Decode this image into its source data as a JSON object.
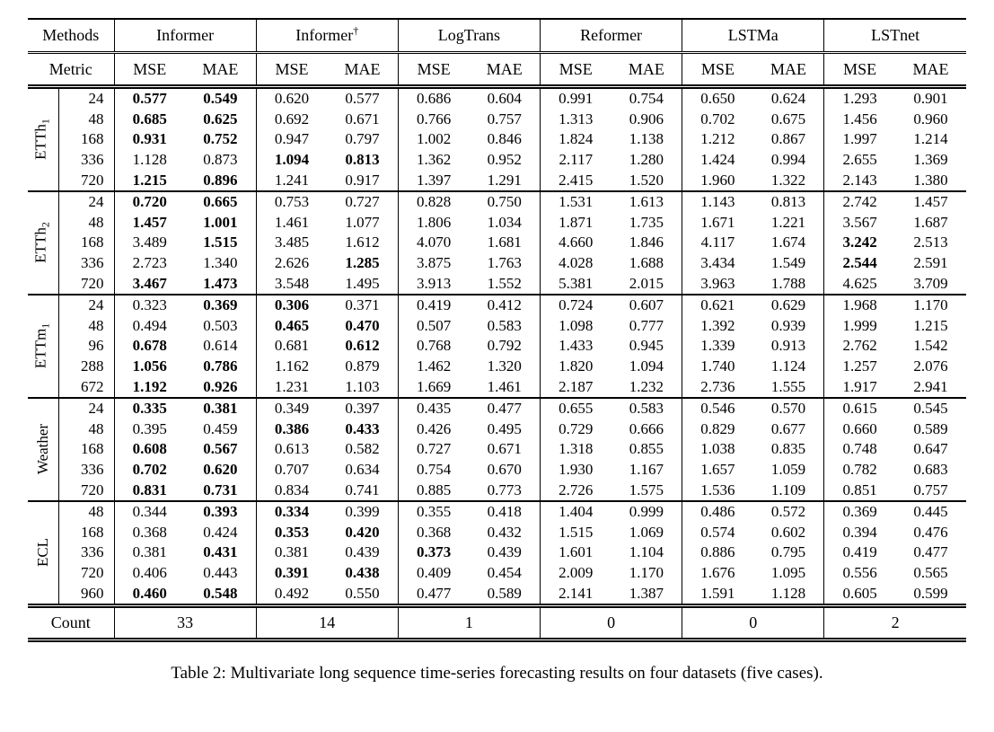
{
  "header": {
    "methods_label": "Methods",
    "metric_label": "Metric",
    "mse": "MSE",
    "mae": "MAE",
    "methods": [
      {
        "name": "Informer",
        "sup": ""
      },
      {
        "name": "Informer",
        "sup": "†"
      },
      {
        "name": "LogTrans",
        "sup": ""
      },
      {
        "name": "Reformer",
        "sup": ""
      },
      {
        "name": "LSTMa",
        "sup": ""
      },
      {
        "name": "LSTnet",
        "sup": ""
      }
    ]
  },
  "groups": [
    {
      "dataset": "ETTh",
      "sub": "1",
      "rows": [
        {
          "len": "24",
          "values": [
            "0.577",
            "0.549",
            "0.620",
            "0.577",
            "0.686",
            "0.604",
            "0.991",
            "0.754",
            "0.650",
            "0.624",
            "1.293",
            "0.901"
          ],
          "bold": [
            1,
            1,
            0,
            0,
            0,
            0,
            0,
            0,
            0,
            0,
            0,
            0
          ]
        },
        {
          "len": "48",
          "values": [
            "0.685",
            "0.625",
            "0.692",
            "0.671",
            "0.766",
            "0.757",
            "1.313",
            "0.906",
            "0.702",
            "0.675",
            "1.456",
            "0.960"
          ],
          "bold": [
            1,
            1,
            0,
            0,
            0,
            0,
            0,
            0,
            0,
            0,
            0,
            0
          ]
        },
        {
          "len": "168",
          "values": [
            "0.931",
            "0.752",
            "0.947",
            "0.797",
            "1.002",
            "0.846",
            "1.824",
            "1.138",
            "1.212",
            "0.867",
            "1.997",
            "1.214"
          ],
          "bold": [
            1,
            1,
            0,
            0,
            0,
            0,
            0,
            0,
            0,
            0,
            0,
            0
          ]
        },
        {
          "len": "336",
          "values": [
            "1.128",
            "0.873",
            "1.094",
            "0.813",
            "1.362",
            "0.952",
            "2.117",
            "1.280",
            "1.424",
            "0.994",
            "2.655",
            "1.369"
          ],
          "bold": [
            0,
            0,
            1,
            1,
            0,
            0,
            0,
            0,
            0,
            0,
            0,
            0
          ]
        },
        {
          "len": "720",
          "values": [
            "1.215",
            "0.896",
            "1.241",
            "0.917",
            "1.397",
            "1.291",
            "2.415",
            "1.520",
            "1.960",
            "1.322",
            "2.143",
            "1.380"
          ],
          "bold": [
            1,
            1,
            0,
            0,
            0,
            0,
            0,
            0,
            0,
            0,
            0,
            0
          ]
        }
      ]
    },
    {
      "dataset": "ETTh",
      "sub": "2",
      "rows": [
        {
          "len": "24",
          "values": [
            "0.720",
            "0.665",
            "0.753",
            "0.727",
            "0.828",
            "0.750",
            "1.531",
            "1.613",
            "1.143",
            "0.813",
            "2.742",
            "1.457"
          ],
          "bold": [
            1,
            1,
            0,
            0,
            0,
            0,
            0,
            0,
            0,
            0,
            0,
            0
          ]
        },
        {
          "len": "48",
          "values": [
            "1.457",
            "1.001",
            "1.461",
            "1.077",
            "1.806",
            "1.034",
            "1.871",
            "1.735",
            "1.671",
            "1.221",
            "3.567",
            "1.687"
          ],
          "bold": [
            1,
            1,
            0,
            0,
            0,
            0,
            0,
            0,
            0,
            0,
            0,
            0
          ]
        },
        {
          "len": "168",
          "values": [
            "3.489",
            "1.515",
            "3.485",
            "1.612",
            "4.070",
            "1.681",
            "4.660",
            "1.846",
            "4.117",
            "1.674",
            "3.242",
            "2.513"
          ],
          "bold": [
            0,
            1,
            0,
            0,
            0,
            0,
            0,
            0,
            0,
            0,
            1,
            0
          ]
        },
        {
          "len": "336",
          "values": [
            "2.723",
            "1.340",
            "2.626",
            "1.285",
            "3.875",
            "1.763",
            "4.028",
            "1.688",
            "3.434",
            "1.549",
            "2.544",
            "2.591"
          ],
          "bold": [
            0,
            0,
            0,
            1,
            0,
            0,
            0,
            0,
            0,
            0,
            1,
            0
          ]
        },
        {
          "len": "720",
          "values": [
            "3.467",
            "1.473",
            "3.548",
            "1.495",
            "3.913",
            "1.552",
            "5.381",
            "2.015",
            "3.963",
            "1.788",
            "4.625",
            "3.709"
          ],
          "bold": [
            1,
            1,
            0,
            0,
            0,
            0,
            0,
            0,
            0,
            0,
            0,
            0
          ]
        }
      ]
    },
    {
      "dataset": "ETTm",
      "sub": "1",
      "rows": [
        {
          "len": "24",
          "values": [
            "0.323",
            "0.369",
            "0.306",
            "0.371",
            "0.419",
            "0.412",
            "0.724",
            "0.607",
            "0.621",
            "0.629",
            "1.968",
            "1.170"
          ],
          "bold": [
            0,
            1,
            1,
            0,
            0,
            0,
            0,
            0,
            0,
            0,
            0,
            0
          ]
        },
        {
          "len": "48",
          "values": [
            "0.494",
            "0.503",
            "0.465",
            "0.470",
            "0.507",
            "0.583",
            "1.098",
            "0.777",
            "1.392",
            "0.939",
            "1.999",
            "1.215"
          ],
          "bold": [
            0,
            0,
            1,
            1,
            0,
            0,
            0,
            0,
            0,
            0,
            0,
            0
          ]
        },
        {
          "len": "96",
          "values": [
            "0.678",
            "0.614",
            "0.681",
            "0.612",
            "0.768",
            "0.792",
            "1.433",
            "0.945",
            "1.339",
            "0.913",
            "2.762",
            "1.542"
          ],
          "bold": [
            1,
            0,
            0,
            1,
            0,
            0,
            0,
            0,
            0,
            0,
            0,
            0
          ]
        },
        {
          "len": "288",
          "values": [
            "1.056",
            "0.786",
            "1.162",
            "0.879",
            "1.462",
            "1.320",
            "1.820",
            "1.094",
            "1.740",
            "1.124",
            "1.257",
            "2.076"
          ],
          "bold": [
            1,
            1,
            0,
            0,
            0,
            0,
            0,
            0,
            0,
            0,
            0,
            0
          ]
        },
        {
          "len": "672",
          "values": [
            "1.192",
            "0.926",
            "1.231",
            "1.103",
            "1.669",
            "1.461",
            "2.187",
            "1.232",
            "2.736",
            "1.555",
            "1.917",
            "2.941"
          ],
          "bold": [
            1,
            1,
            0,
            0,
            0,
            0,
            0,
            0,
            0,
            0,
            0,
            0
          ]
        }
      ]
    },
    {
      "dataset": "Weather",
      "sub": "",
      "rows": [
        {
          "len": "24",
          "values": [
            "0.335",
            "0.381",
            "0.349",
            "0.397",
            "0.435",
            "0.477",
            "0.655",
            "0.583",
            "0.546",
            "0.570",
            "0.615",
            "0.545"
          ],
          "bold": [
            1,
            1,
            0,
            0,
            0,
            0,
            0,
            0,
            0,
            0,
            0,
            0
          ]
        },
        {
          "len": "48",
          "values": [
            "0.395",
            "0.459",
            "0.386",
            "0.433",
            "0.426",
            "0.495",
            "0.729",
            "0.666",
            "0.829",
            "0.677",
            "0.660",
            "0.589"
          ],
          "bold": [
            0,
            0,
            1,
            1,
            0,
            0,
            0,
            0,
            0,
            0,
            0,
            0
          ]
        },
        {
          "len": "168",
          "values": [
            "0.608",
            "0.567",
            "0.613",
            "0.582",
            "0.727",
            "0.671",
            "1.318",
            "0.855",
            "1.038",
            "0.835",
            "0.748",
            "0.647"
          ],
          "bold": [
            1,
            1,
            0,
            0,
            0,
            0,
            0,
            0,
            0,
            0,
            0,
            0
          ]
        },
        {
          "len": "336",
          "values": [
            "0.702",
            "0.620",
            "0.707",
            "0.634",
            "0.754",
            "0.670",
            "1.930",
            "1.167",
            "1.657",
            "1.059",
            "0.782",
            "0.683"
          ],
          "bold": [
            1,
            1,
            0,
            0,
            0,
            0,
            0,
            0,
            0,
            0,
            0,
            0
          ]
        },
        {
          "len": "720",
          "values": [
            "0.831",
            "0.731",
            "0.834",
            "0.741",
            "0.885",
            "0.773",
            "2.726",
            "1.575",
            "1.536",
            "1.109",
            "0.851",
            "0.757"
          ],
          "bold": [
            1,
            1,
            0,
            0,
            0,
            0,
            0,
            0,
            0,
            0,
            0,
            0
          ]
        }
      ]
    },
    {
      "dataset": "ECL",
      "sub": "",
      "rows": [
        {
          "len": "48",
          "values": [
            "0.344",
            "0.393",
            "0.334",
            "0.399",
            "0.355",
            "0.418",
            "1.404",
            "0.999",
            "0.486",
            "0.572",
            "0.369",
            "0.445"
          ],
          "bold": [
            0,
            1,
            1,
            0,
            0,
            0,
            0,
            0,
            0,
            0,
            0,
            0
          ]
        },
        {
          "len": "168",
          "values": [
            "0.368",
            "0.424",
            "0.353",
            "0.420",
            "0.368",
            "0.432",
            "1.515",
            "1.069",
            "0.574",
            "0.602",
            "0.394",
            "0.476"
          ],
          "bold": [
            0,
            0,
            1,
            1,
            0,
            0,
            0,
            0,
            0,
            0,
            0,
            0
          ]
        },
        {
          "len": "336",
          "values": [
            "0.381",
            "0.431",
            "0.381",
            "0.439",
            "0.373",
            "0.439",
            "1.601",
            "1.104",
            "0.886",
            "0.795",
            "0.419",
            "0.477"
          ],
          "bold": [
            0,
            1,
            0,
            0,
            1,
            0,
            0,
            0,
            0,
            0,
            0,
            0
          ]
        },
        {
          "len": "720",
          "values": [
            "0.406",
            "0.443",
            "0.391",
            "0.438",
            "0.409",
            "0.454",
            "2.009",
            "1.170",
            "1.676",
            "1.095",
            "0.556",
            "0.565"
          ],
          "bold": [
            0,
            0,
            1,
            1,
            0,
            0,
            0,
            0,
            0,
            0,
            0,
            0
          ]
        },
        {
          "len": "960",
          "values": [
            "0.460",
            "0.548",
            "0.492",
            "0.550",
            "0.477",
            "0.589",
            "2.141",
            "1.387",
            "1.591",
            "1.128",
            "0.605",
            "0.599"
          ],
          "bold": [
            1,
            1,
            0,
            0,
            0,
            0,
            0,
            0,
            0,
            0,
            0,
            0
          ]
        }
      ]
    }
  ],
  "count_row": {
    "label": "Count",
    "values": [
      "33",
      "14",
      "1",
      "0",
      "0",
      "2"
    ]
  },
  "caption": "Table 2: Multivariate long sequence time-series forecasting results on four datasets (five cases)."
}
